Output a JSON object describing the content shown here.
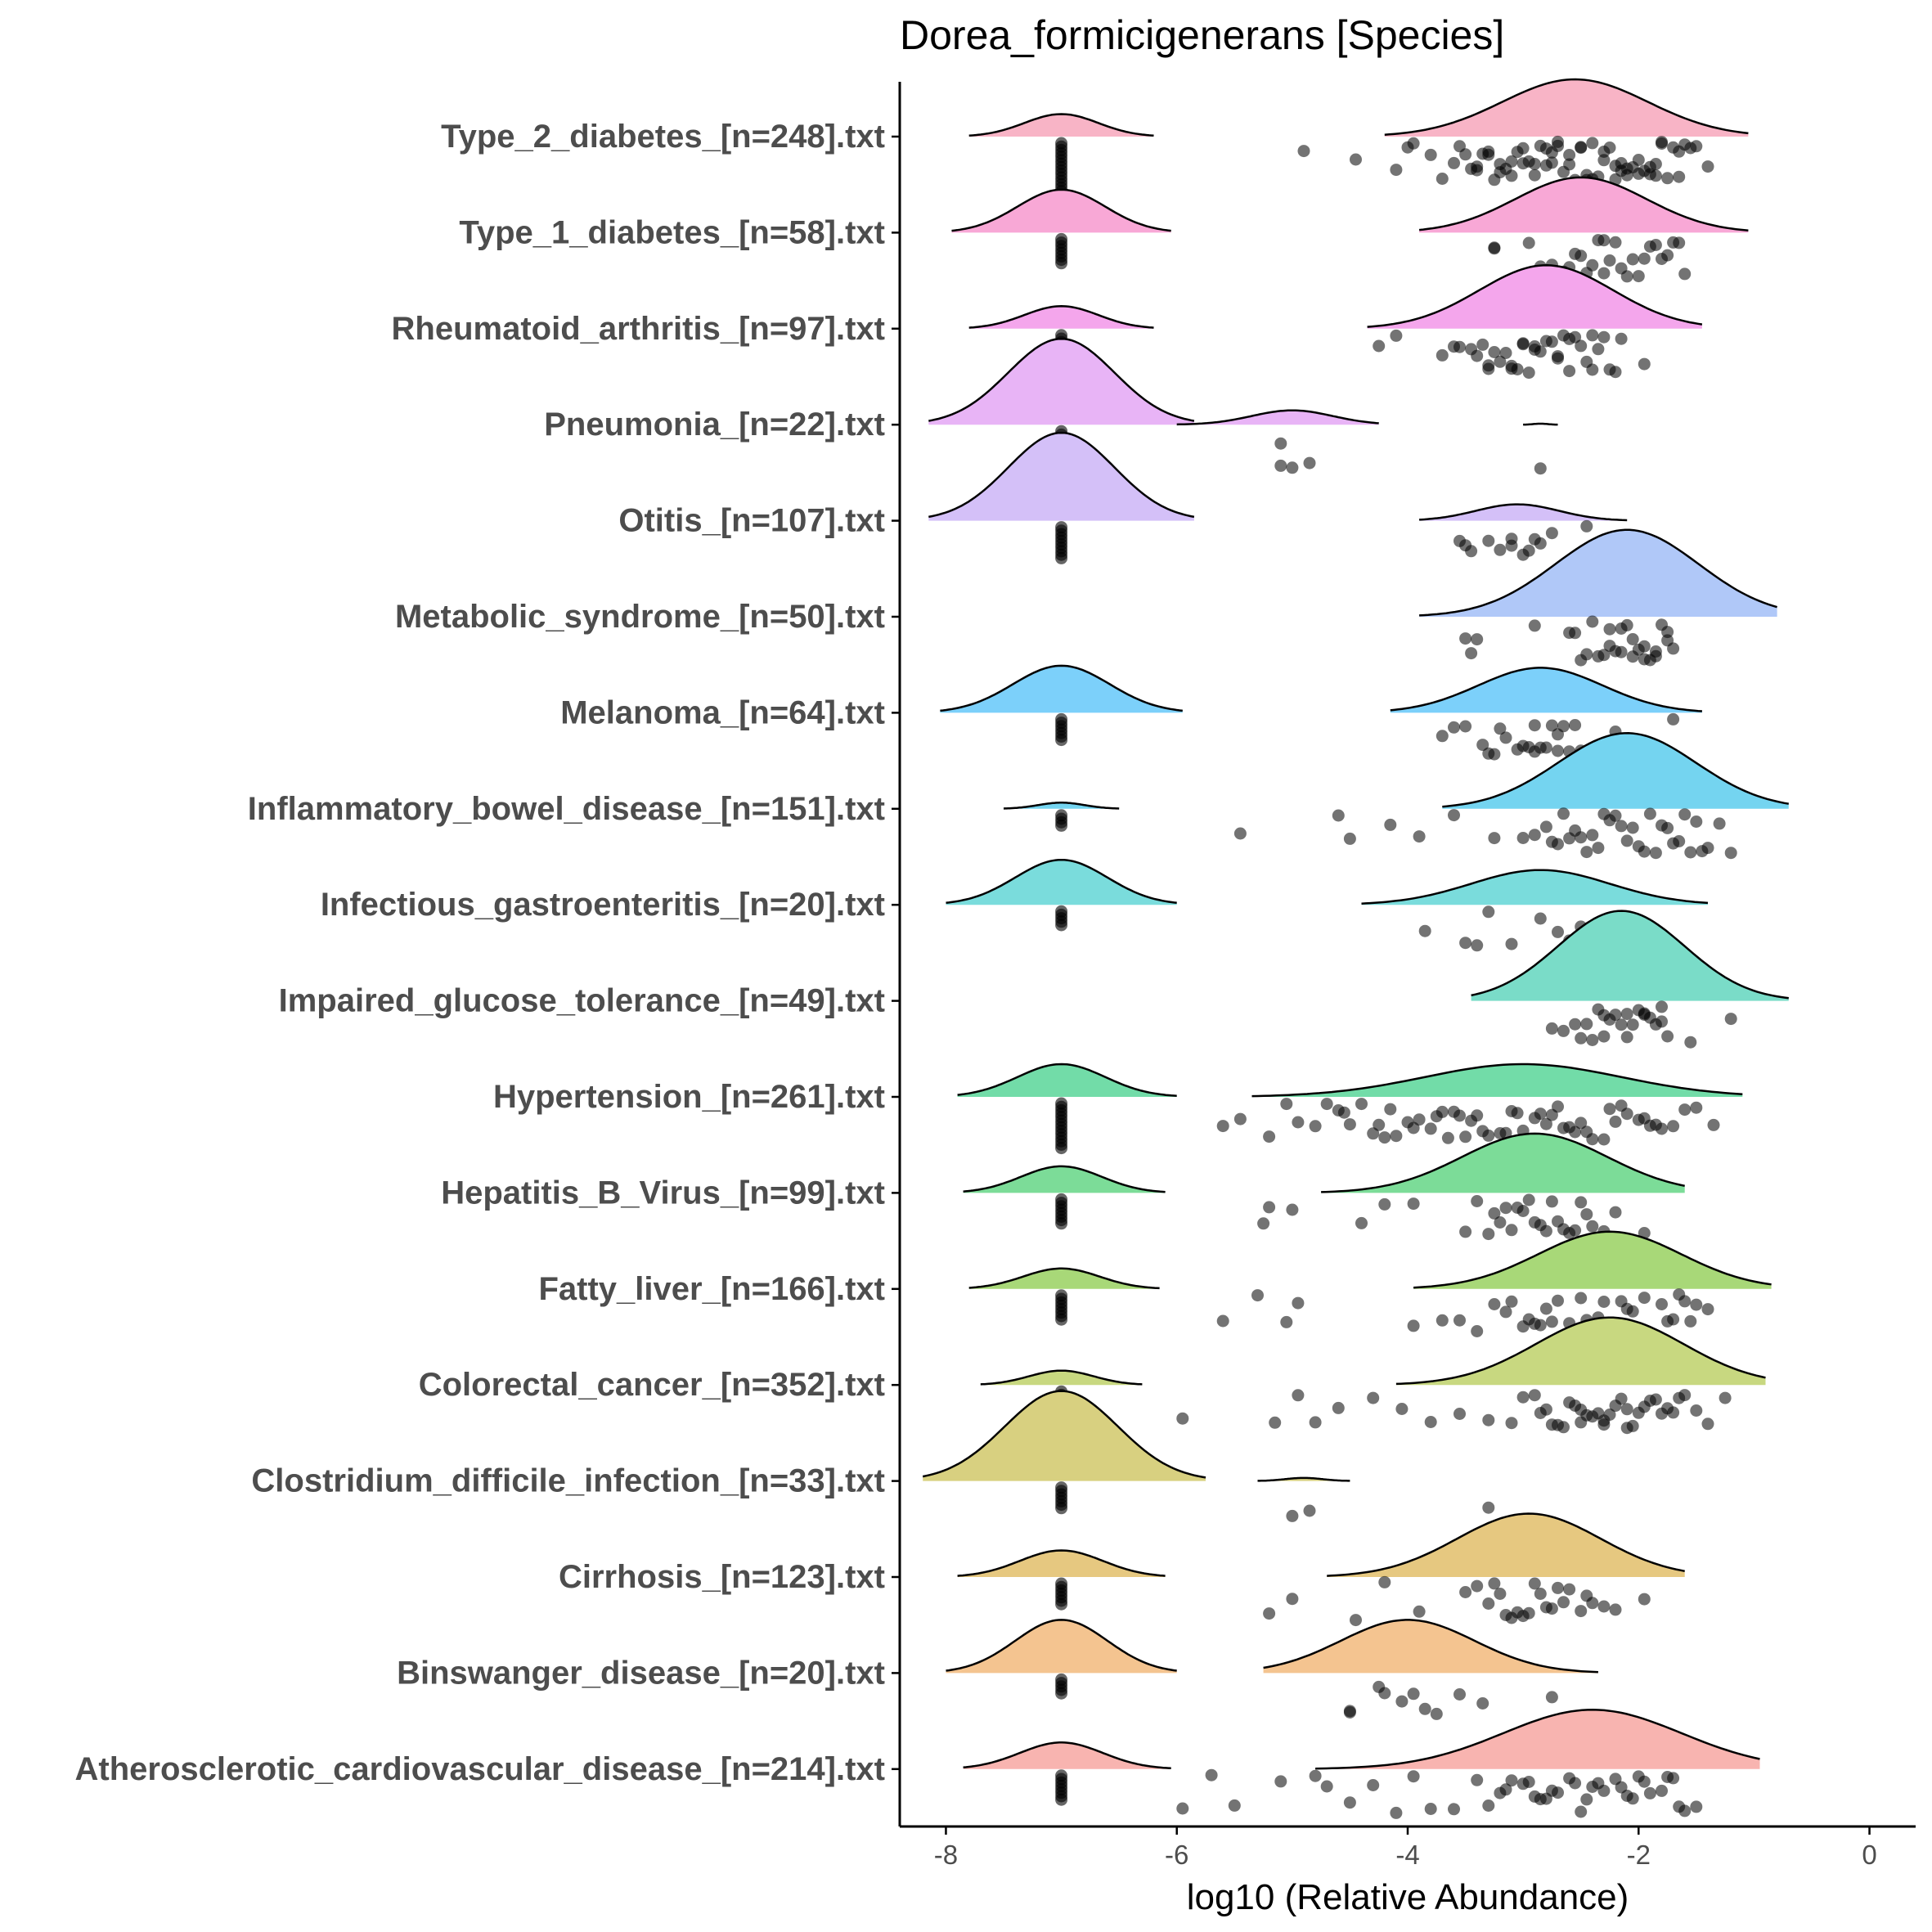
{
  "chart_data": {
    "type": "raincloud",
    "title": "Dorea_formicigenerans [Species]",
    "xlabel": "log10 (Relative Abundance)",
    "ylabel": "",
    "xlim": [
      -8.4,
      0.4
    ],
    "xticks": [
      -8,
      -6,
      -4,
      -2,
      0
    ],
    "xtick_labels": [
      "-8",
      "-6",
      "-4",
      "-2",
      "0"
    ],
    "zero_value": -7,
    "categories": [
      {
        "label": "Type_2_diabetes_[n=248].txt",
        "color": "#f8b4c6",
        "zero": {
          "lo": -7.8,
          "hi": -6.2,
          "h": 0.22
        },
        "densities": [
          {
            "lo": -4.2,
            "hi": -1.05,
            "mu": -2.55,
            "h": 0.56
          }
        ],
        "n_zero": 15,
        "points": [
          -4.9,
          -4.45,
          -4.1,
          -4.0,
          -3.95,
          -3.8,
          -3.7,
          -3.6,
          -3.55,
          -3.5,
          -3.45,
          -3.4,
          -3.35,
          -3.3,
          -3.25,
          -3.2,
          -3.15,
          -3.1,
          -3.05,
          -3.0,
          -2.95,
          -2.9,
          -2.85,
          -2.8,
          -2.75,
          -2.7,
          -2.65,
          -2.6,
          -2.55,
          -2.5,
          -2.45,
          -2.4,
          -2.35,
          -2.3,
          -2.25,
          -2.2,
          -2.15,
          -2.1,
          -2.05,
          -2.0,
          -1.95,
          -1.9,
          -1.85,
          -1.8,
          -1.75,
          -1.7,
          -1.65,
          -1.6,
          -1.55,
          -1.5,
          -1.4,
          -3.3,
          -3.0,
          -2.8,
          -2.6,
          -2.4,
          -2.2,
          -2.0,
          -1.8,
          -3.1,
          -2.9,
          -2.7,
          -2.5,
          -2.3,
          -2.1,
          -1.9,
          -3.4,
          -3.2,
          -2.75,
          -2.45,
          -2.15,
          -1.85,
          -1.65
        ]
      },
      {
        "label": "Type_1_diabetes_[n=58].txt",
        "color": "#f8a8d6",
        "zero": {
          "lo": -7.95,
          "hi": -6.05,
          "h": 0.42
        },
        "densities": [
          {
            "lo": -3.9,
            "hi": -1.05,
            "mu": -2.5,
            "h": 0.54
          }
        ],
        "n_zero": 8,
        "points": [
          -3.25,
          -3.25,
          -2.95,
          -2.85,
          -2.75,
          -2.65,
          -2.6,
          -2.55,
          -2.5,
          -2.45,
          -2.4,
          -2.35,
          -2.3,
          -2.25,
          -2.2,
          -2.15,
          -2.05,
          -2.0,
          -1.9,
          -1.85,
          -1.8,
          -1.75,
          -1.7,
          -1.65,
          -1.6,
          -2.7,
          -2.3,
          -2.1,
          -1.95
        ]
      },
      {
        "label": "Rheumatoid_arthritis_[n=97].txt",
        "color": "#f4a6ec",
        "zero": {
          "lo": -7.8,
          "hi": -6.2,
          "h": 0.22
        },
        "densities": [
          {
            "lo": -4.35,
            "hi": -1.45,
            "mu": -2.8,
            "h": 0.62
          }
        ],
        "n_zero": 5,
        "points": [
          -4.25,
          -4.1,
          -3.7,
          -3.6,
          -3.55,
          -3.45,
          -3.4,
          -3.35,
          -3.3,
          -3.25,
          -3.2,
          -3.15,
          -3.1,
          -3.05,
          -3.0,
          -2.95,
          -2.9,
          -2.85,
          -2.8,
          -2.75,
          -2.7,
          -2.65,
          -2.6,
          -2.55,
          -2.5,
          -2.45,
          -2.4,
          -2.35,
          -2.3,
          -2.25,
          -2.2,
          -2.15,
          -1.95,
          -3.3,
          -3.0,
          -2.7,
          -2.4,
          -2.9,
          -2.6,
          -3.1
        ]
      },
      {
        "label": "Pneumonia_[n=22].txt",
        "color": "#e8b4f6",
        "zero": {
          "lo": -8.15,
          "hi": -5.85,
          "h": 0.84
        },
        "densities": [
          {
            "lo": -6.0,
            "hi": -4.25,
            "mu": -5.0,
            "h": 0.14
          },
          {
            "lo": -3.0,
            "hi": -2.7,
            "mu": -2.85,
            "h": 0.01
          }
        ],
        "n_zero": 6,
        "points": [
          -5.1,
          -4.85,
          -5.0,
          -5.1,
          -2.85
        ]
      },
      {
        "label": "Otitis_[n=107].txt",
        "color": "#d4c0f8",
        "zero": {
          "lo": -8.15,
          "hi": -5.85,
          "h": 0.86
        },
        "densities": [
          {
            "lo": -3.9,
            "hi": -2.1,
            "mu": -3.05,
            "h": 0.16
          }
        ],
        "n_zero": 10,
        "points": [
          -3.55,
          -3.45,
          -3.3,
          -3.1,
          -2.95,
          -2.85,
          -2.75,
          -2.45,
          -3.5,
          -3.2,
          -3.0,
          -2.9,
          -3.1,
          -2.05
        ]
      },
      {
        "label": "Metabolic_syndrome_[n=50].txt",
        "color": "#b0c8f8",
        "zero": null,
        "densities": [
          {
            "lo": -3.9,
            "hi": -0.8,
            "mu": -2.1,
            "h": 0.85
          }
        ],
        "n_zero": 0,
        "points": [
          -3.5,
          -3.4,
          -3.45,
          -2.9,
          -2.6,
          -2.5,
          -2.4,
          -2.35,
          -2.3,
          -2.25,
          -2.2,
          -2.15,
          -2.1,
          -2.05,
          -2.0,
          -1.95,
          -1.9,
          -1.85,
          -1.8,
          -1.75,
          -1.7,
          -2.45,
          -2.15,
          -1.95,
          -1.75,
          -2.55,
          -2.05,
          -2.25,
          -1.85
        ]
      },
      {
        "label": "Melanoma_[n=64].txt",
        "color": "#7cd0fa",
        "zero": {
          "lo": -8.05,
          "hi": -5.95,
          "h": 0.46
        },
        "densities": [
          {
            "lo": -4.15,
            "hi": -1.45,
            "mu": -2.85,
            "h": 0.44
          }
        ],
        "n_zero": 7,
        "points": [
          -3.7,
          -3.6,
          -3.5,
          -3.35,
          -3.25,
          -3.15,
          -3.05,
          -2.95,
          -2.9,
          -2.85,
          -2.8,
          -2.75,
          -2.7,
          -2.65,
          -2.6,
          -2.5,
          -2.4,
          -2.2,
          -1.7,
          -3.2,
          -3.0,
          -2.7,
          -2.55,
          -3.3,
          -2.9
        ]
      },
      {
        "label": "Inflammatory_bowel_disease_[n=151].txt",
        "color": "#74d4f0",
        "zero": {
          "lo": -7.5,
          "hi": -6.5,
          "h": 0.06
        },
        "densities": [
          {
            "lo": -3.7,
            "hi": -0.7,
            "mu": -2.1,
            "h": 0.74
          }
        ],
        "n_zero": 4,
        "points": [
          -5.45,
          -4.6,
          -4.5,
          -4.15,
          -3.9,
          -3.6,
          -3.25,
          -3.0,
          -2.9,
          -2.8,
          -2.7,
          -2.6,
          -2.5,
          -2.4,
          -2.3,
          -2.2,
          -2.1,
          -2.0,
          -1.9,
          -1.8,
          -1.7,
          -1.6,
          -1.5,
          -1.4,
          -1.3,
          -1.2,
          -2.75,
          -2.55,
          -2.35,
          -2.15,
          -1.95,
          -1.75,
          -1.55,
          -2.65,
          -2.45,
          -2.25,
          -2.05,
          -1.85,
          -1.65,
          -1.45
        ]
      },
      {
        "label": "Infectious_gastroenteritis_[n=20].txt",
        "color": "#7adcdc",
        "zero": {
          "lo": -8.0,
          "hi": -6.0,
          "h": 0.44
        },
        "densities": [
          {
            "lo": -4.4,
            "hi": -1.4,
            "mu": -2.85,
            "h": 0.34
          }
        ],
        "n_zero": 5,
        "points": [
          -3.85,
          -3.5,
          -3.3,
          -3.1,
          -2.85,
          -2.7,
          -2.5,
          -2.35,
          -2.2,
          -3.4,
          -2.6
        ]
      },
      {
        "label": "Impaired_glucose_tolerance_[n=49].txt",
        "color": "#7adcc8",
        "zero": null,
        "densities": [
          {
            "lo": -3.45,
            "hi": -0.7,
            "mu": -2.15,
            "h": 0.88
          }
        ],
        "n_zero": 0,
        "points": [
          -2.75,
          -2.65,
          -2.55,
          -2.45,
          -2.4,
          -2.35,
          -2.3,
          -2.25,
          -2.2,
          -2.15,
          -2.1,
          -2.05,
          -2.0,
          -1.95,
          -1.9,
          -1.85,
          -1.8,
          -1.75,
          -1.55,
          -1.2,
          -2.5,
          -2.1,
          -1.95,
          -2.3,
          -1.8
        ]
      },
      {
        "label": "Hypertension_[n=261].txt",
        "color": "#72dca8",
        "zero": {
          "lo": -7.9,
          "hi": -6.0,
          "h": 0.32
        },
        "densities": [
          {
            "lo": -5.35,
            "hi": -1.1,
            "mu": -3.0,
            "h": 0.32
          }
        ],
        "n_zero": 14,
        "points": [
          -5.6,
          -5.45,
          -5.2,
          -5.05,
          -4.95,
          -4.8,
          -4.7,
          -4.6,
          -4.5,
          -4.4,
          -4.3,
          -4.2,
          -4.1,
          -4.0,
          -3.9,
          -3.8,
          -3.7,
          -3.6,
          -3.5,
          -3.4,
          -3.3,
          -3.2,
          -3.1,
          -3.0,
          -2.9,
          -2.8,
          -2.7,
          -2.6,
          -2.5,
          -2.4,
          -2.3,
          -2.2,
          -2.1,
          -2.0,
          -1.9,
          -1.8,
          -1.7,
          -1.6,
          -1.5,
          -1.35,
          -4.55,
          -4.25,
          -3.95,
          -3.65,
          -3.35,
          -3.05,
          -2.75,
          -2.45,
          -2.15,
          -1.85,
          -4.15,
          -3.75,
          -3.45,
          -3.15,
          -2.85,
          -2.55,
          -2.25,
          -1.95,
          -3.55,
          -2.65
        ]
      },
      {
        "label": "Hepatitis_B_Virus_[n=99].txt",
        "color": "#7cdc98",
        "zero": {
          "lo": -7.85,
          "hi": -6.1,
          "h": 0.26
        },
        "densities": [
          {
            "lo": -4.75,
            "hi": -1.6,
            "mu": -2.9,
            "h": 0.58
          }
        ],
        "n_zero": 8,
        "points": [
          -5.25,
          -5.2,
          -5.0,
          -4.4,
          -4.2,
          -3.95,
          -3.5,
          -3.4,
          -3.3,
          -3.2,
          -3.1,
          -3.0,
          -2.9,
          -2.8,
          -2.7,
          -2.6,
          -2.5,
          -2.4,
          -2.3,
          -2.2,
          -1.95,
          -3.25,
          -3.05,
          -2.85,
          -2.65,
          -2.45,
          -3.15,
          -2.95,
          -2.75,
          -2.55
        ]
      },
      {
        "label": "Fatty_liver_[n=166].txt",
        "color": "#a8d878",
        "zero": {
          "lo": -7.8,
          "hi": -6.15,
          "h": 0.2
        },
        "densities": [
          {
            "lo": -3.95,
            "hi": -0.85,
            "mu": -2.25,
            "h": 0.56
          }
        ],
        "n_zero": 8,
        "points": [
          -5.6,
          -5.3,
          -5.05,
          -4.95,
          -3.95,
          -3.7,
          -3.55,
          -3.4,
          -3.25,
          -3.1,
          -3.0,
          -2.9,
          -2.8,
          -2.7,
          -2.6,
          -2.5,
          -2.4,
          -2.3,
          -2.2,
          -2.1,
          -2.0,
          -1.9,
          -1.8,
          -1.7,
          -1.6,
          -1.5,
          -1.4,
          -3.15,
          -2.95,
          -2.75,
          -2.55,
          -2.35,
          -2.15,
          -1.95,
          -1.75,
          -1.55,
          -2.85,
          -2.45,
          -2.05,
          -1.65
        ]
      },
      {
        "label": "Colorectal_cancer_[n=352].txt",
        "color": "#c8d880",
        "zero": {
          "lo": -7.7,
          "hi": -6.3,
          "h": 0.14
        },
        "densities": [
          {
            "lo": -4.1,
            "hi": -0.9,
            "mu": -2.25,
            "h": 0.66
          }
        ],
        "n_zero": 6,
        "points": [
          -5.95,
          -5.15,
          -4.95,
          -4.8,
          -4.6,
          -4.3,
          -4.05,
          -3.8,
          -3.55,
          -3.3,
          -3.1,
          -3.0,
          -2.9,
          -2.8,
          -2.7,
          -2.6,
          -2.5,
          -2.4,
          -2.3,
          -2.2,
          -2.1,
          -2.0,
          -1.9,
          -1.8,
          -1.7,
          -1.6,
          -1.5,
          -1.4,
          -1.25,
          -2.85,
          -2.65,
          -2.45,
          -2.25,
          -2.05,
          -1.85,
          -1.65,
          -2.75,
          -2.55,
          -2.35,
          -2.15,
          -1.95,
          -1.75,
          -2.5,
          -2.3,
          -2.1
        ]
      },
      {
        "label": "Clostridium_difficile_infection_[n=33].txt",
        "color": "#d8d080",
        "zero": {
          "lo": -8.2,
          "hi": -5.75,
          "h": 0.88
        },
        "densities": [
          {
            "lo": -5.3,
            "hi": -4.5,
            "mu": -4.9,
            "h": 0.03
          }
        ],
        "n_zero": 7,
        "points": [
          -5.0,
          -4.85,
          -3.3
        ]
      },
      {
        "label": "Cirrhosis_[n=123].txt",
        "color": "#e6c880",
        "zero": {
          "lo": -7.9,
          "hi": -6.1,
          "h": 0.26
        },
        "densities": [
          {
            "lo": -4.7,
            "hi": -1.6,
            "mu": -2.95,
            "h": 0.62
          }
        ],
        "n_zero": 7,
        "points": [
          -5.2,
          -5.0,
          -4.45,
          -4.2,
          -3.9,
          -3.5,
          -3.4,
          -3.3,
          -3.2,
          -3.1,
          -3.0,
          -2.9,
          -2.8,
          -2.7,
          -2.6,
          -2.5,
          -2.4,
          -2.3,
          -2.2,
          -1.95,
          -3.25,
          -3.05,
          -2.85,
          -2.65,
          -2.45,
          -3.15,
          -2.95,
          -2.75
        ]
      },
      {
        "label": "Binswanger_disease_[n=20].txt",
        "color": "#f4c490",
        "zero": {
          "lo": -8.0,
          "hi": -6.0,
          "h": 0.52
        },
        "densities": [
          {
            "lo": -5.25,
            "hi": -2.35,
            "mu": -4.0,
            "h": 0.52
          }
        ],
        "n_zero": 5,
        "points": [
          -4.5,
          -4.25,
          -4.2,
          -4.05,
          -3.95,
          -3.85,
          -3.75,
          -3.55,
          -3.35,
          -2.75,
          -4.5
        ]
      },
      {
        "label": "Atherosclerotic_cardiovascular_disease_[n=214].txt",
        "color": "#f8b4b0",
        "zero": {
          "lo": -7.85,
          "hi": -6.05,
          "h": 0.26
        },
        "densities": [
          {
            "lo": -4.8,
            "hi": -0.95,
            "mu": -2.4,
            "h": 0.58
          }
        ],
        "n_zero": 8,
        "points": [
          -5.95,
          -5.7,
          -5.5,
          -5.1,
          -4.8,
          -4.7,
          -4.5,
          -4.3,
          -4.1,
          -3.95,
          -3.8,
          -3.6,
          -3.4,
          -3.3,
          -3.2,
          -3.1,
          -3.0,
          -2.9,
          -2.8,
          -2.7,
          -2.6,
          -2.5,
          -2.4,
          -2.3,
          -2.2,
          -2.1,
          -2.0,
          -1.9,
          -1.8,
          -1.7,
          -1.6,
          -1.5,
          -3.15,
          -2.95,
          -2.75,
          -2.55,
          -2.35,
          -2.15,
          -1.95,
          -1.75,
          -2.85,
          -2.45,
          -2.05,
          -1.65
        ]
      }
    ]
  }
}
